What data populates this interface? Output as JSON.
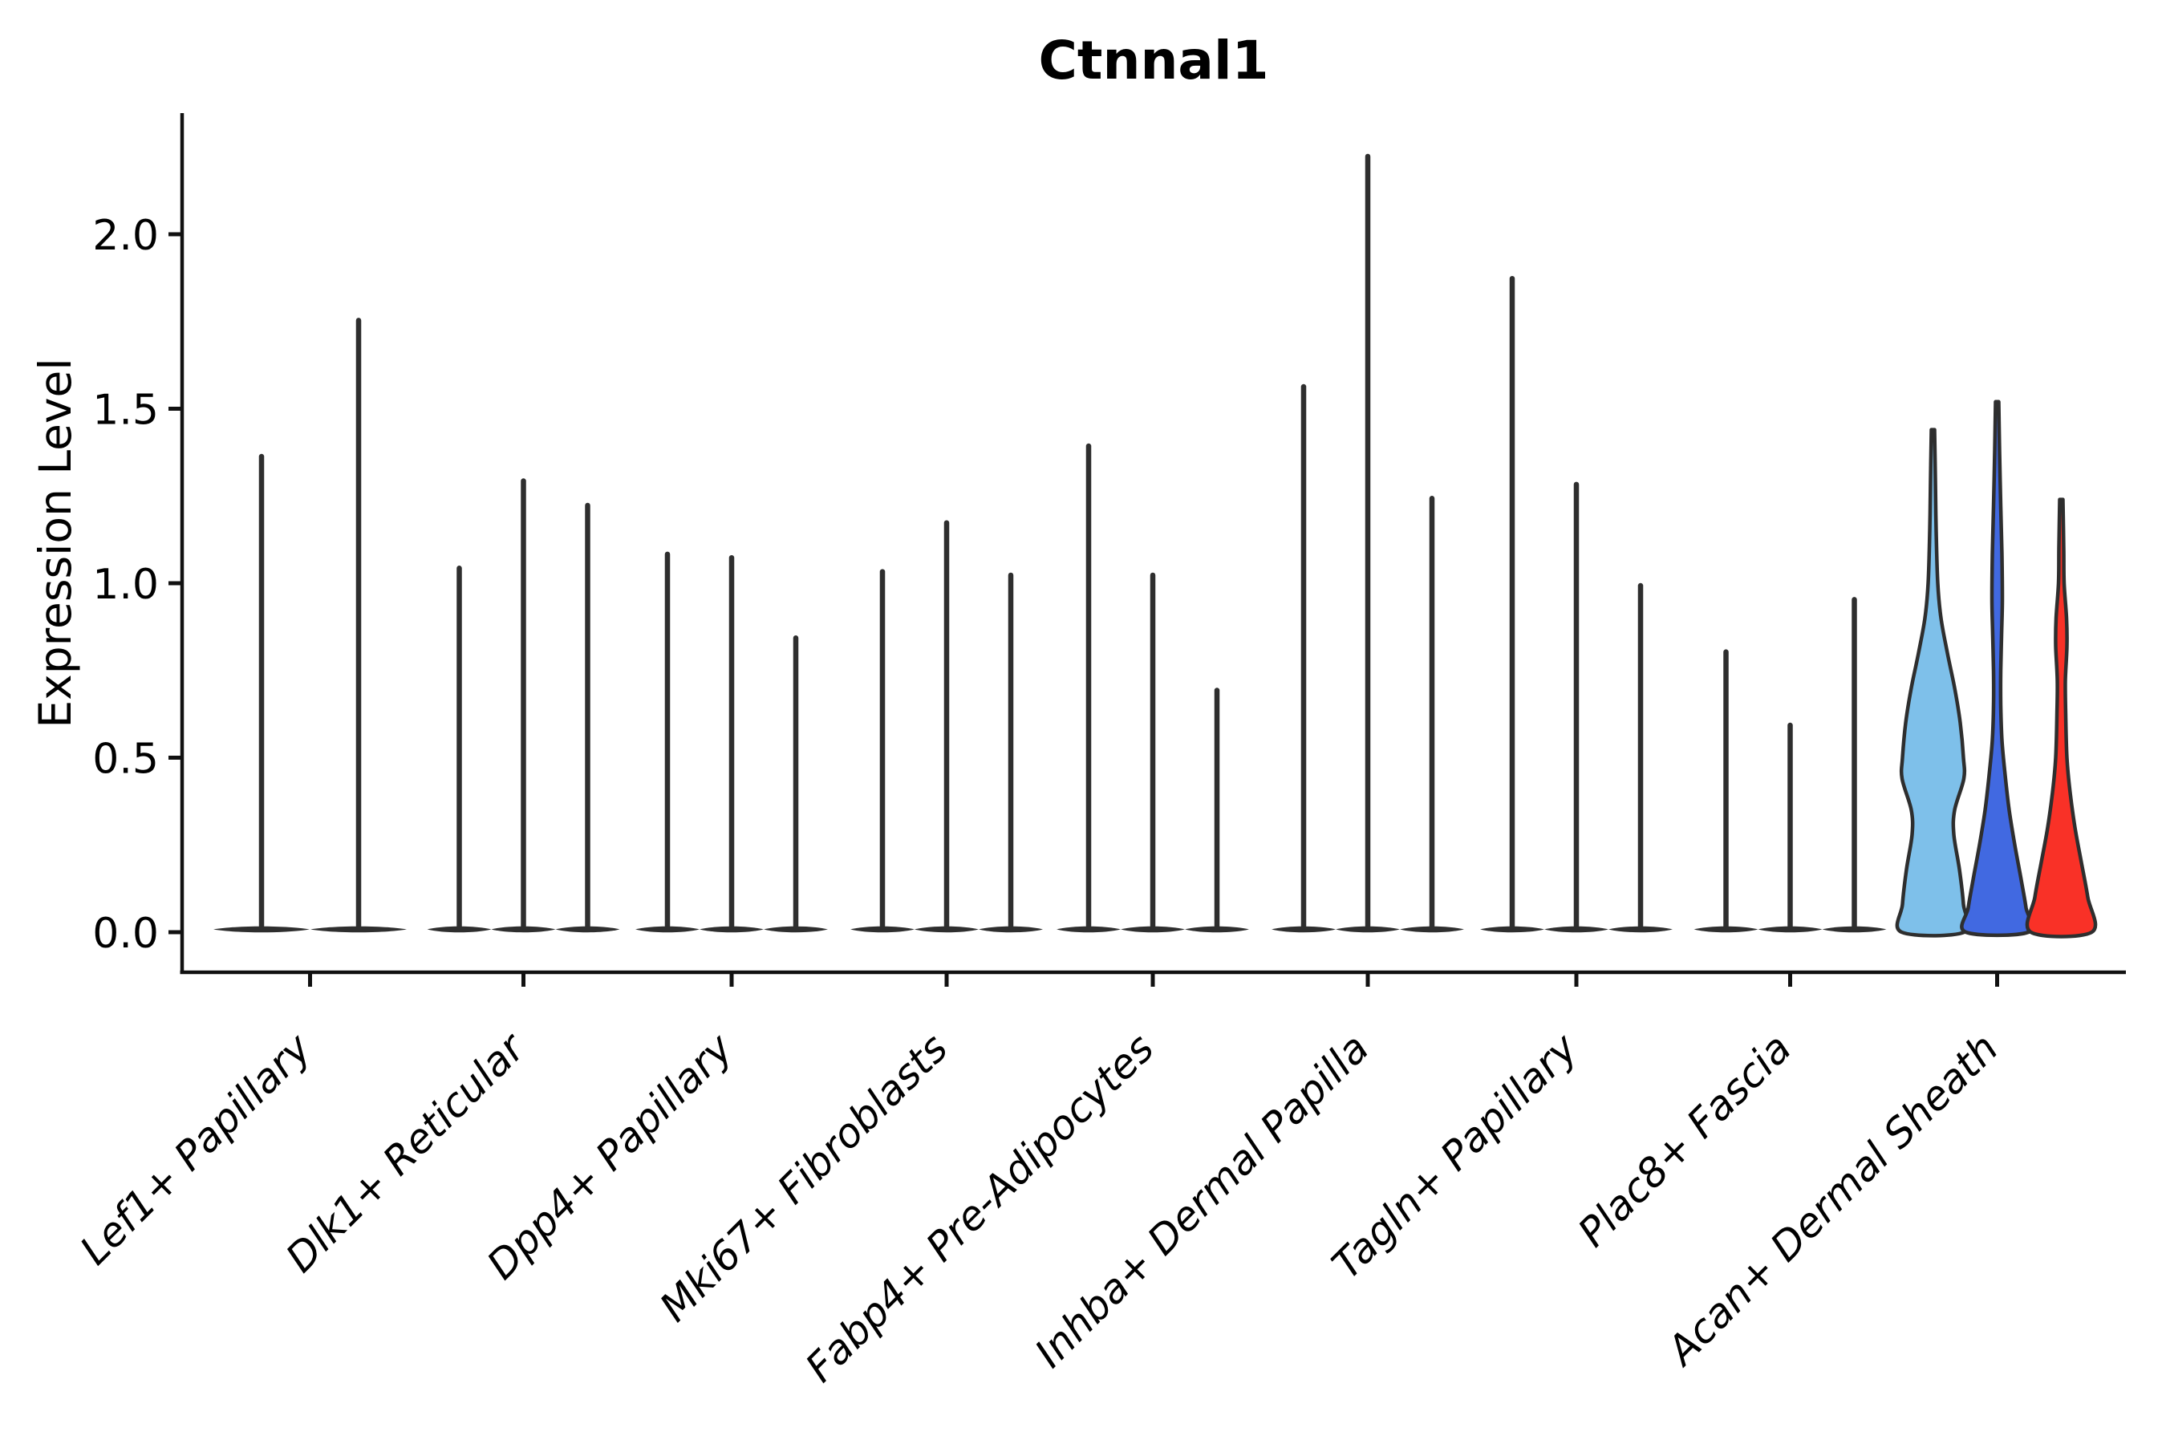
{
  "title": "Ctnnal1",
  "y_axis": {
    "label": "Expression Level",
    "tick_labels": [
      "0.0",
      "0.5",
      "1.0",
      "1.5",
      "2.0"
    ]
  },
  "chart_data": {
    "type": "violin",
    "title": "Ctnnal1",
    "xlabel": "",
    "ylabel": "Expression Level",
    "ylim": [
      -0.12,
      2.35
    ],
    "yticks": [
      0.0,
      0.5,
      1.0,
      1.5,
      2.0
    ],
    "grid": false,
    "legend": "none",
    "categories": [
      "Lef1+ Papillary",
      "Dlk1+ Reticular",
      "Dpp4+ Papillary",
      "Mki67+ Fibroblasts",
      "Fabp4+ Pre-Adipocytes",
      "Inhba+ Dermal Papilla",
      "Tagln+ Papillary",
      "Plac8+ Fascia",
      "Acan+ Dermal Sheath"
    ],
    "outline_color": "#2e2e2e",
    "highlight_fill_colors": [
      "#7EC0EA",
      "#4169E1",
      "#F93127"
    ],
    "groups": [
      {
        "label": "Lef1+ Papillary",
        "violins": [
          {
            "shape": "spike",
            "max": 1.37
          },
          {
            "shape": "spike",
            "max": 1.76
          }
        ]
      },
      {
        "label": "Dlk1+ Reticular",
        "violins": [
          {
            "shape": "spike",
            "max": 1.05
          },
          {
            "shape": "spike",
            "max": 1.3
          },
          {
            "shape": "spike",
            "max": 1.23
          }
        ]
      },
      {
        "label": "Dpp4+ Papillary",
        "violins": [
          {
            "shape": "spike",
            "max": 1.09
          },
          {
            "shape": "spike",
            "max": 1.08
          },
          {
            "shape": "spike",
            "max": 0.85
          }
        ]
      },
      {
        "label": "Mki67+ Fibroblasts",
        "violins": [
          {
            "shape": "spike",
            "max": 1.04
          },
          {
            "shape": "spike",
            "max": 1.18
          },
          {
            "shape": "spike",
            "max": 1.03
          }
        ]
      },
      {
        "label": "Fabp4+ Pre-Adipocytes",
        "violins": [
          {
            "shape": "spike",
            "max": 1.4
          },
          {
            "shape": "spike",
            "max": 1.03
          },
          {
            "shape": "spike",
            "max": 0.7
          }
        ]
      },
      {
        "label": "Inhba+ Dermal Papilla",
        "violins": [
          {
            "shape": "spike",
            "max": 1.57
          },
          {
            "shape": "spike",
            "max": 2.23
          },
          {
            "shape": "spike",
            "max": 1.25
          }
        ]
      },
      {
        "label": "Tagln+ Papillary",
        "violins": [
          {
            "shape": "spike",
            "max": 1.88
          },
          {
            "shape": "spike",
            "max": 1.29
          },
          {
            "shape": "spike",
            "max": 1.0
          }
        ]
      },
      {
        "label": "Plac8+ Fascia",
        "violins": [
          {
            "shape": "spike",
            "max": 0.81
          },
          {
            "shape": "spike",
            "max": 0.6
          },
          {
            "shape": "spike",
            "max": 0.96
          }
        ]
      },
      {
        "label": "Acan+ Dermal Sheath",
        "violins": [
          {
            "shape": "kde",
            "max": 1.44,
            "fill": "#7EC0EA",
            "profile": [
              [
                1.44,
                2
              ],
              [
                1.3,
                3
              ],
              [
                1.15,
                4
              ],
              [
                1.0,
                6
              ],
              [
                0.9,
                10
              ],
              [
                0.8,
                18
              ],
              [
                0.7,
                27
              ],
              [
                0.6,
                34
              ],
              [
                0.5,
                38
              ],
              [
                0.44,
                38.5
              ],
              [
                0.35,
                27
              ],
              [
                0.28,
                26
              ],
              [
                0.18,
                33
              ],
              [
                0.08,
                38
              ],
              [
                0.0,
                39
              ]
            ]
          },
          {
            "shape": "kde",
            "max": 1.52,
            "fill": "#4169E1",
            "profile": [
              [
                1.52,
                2
              ],
              [
                1.38,
                3
              ],
              [
                1.22,
                4.5
              ],
              [
                1.08,
                6
              ],
              [
                0.95,
                6.5
              ],
              [
                0.85,
                5.5
              ],
              [
                0.75,
                4.5
              ],
              [
                0.65,
                4.5
              ],
              [
                0.55,
                6
              ],
              [
                0.45,
                10
              ],
              [
                0.35,
                15
              ],
              [
                0.25,
                22
              ],
              [
                0.15,
                30
              ],
              [
                0.07,
                36
              ],
              [
                0.0,
                39
              ]
            ]
          },
          {
            "shape": "kde",
            "max": 1.24,
            "fill": "#F93127",
            "profile": [
              [
                1.24,
                2
              ],
              [
                1.1,
                3
              ],
              [
                1.0,
                3.5
              ],
              [
                0.9,
                6.5
              ],
              [
                0.82,
                7
              ],
              [
                0.72,
                5
              ],
              [
                0.62,
                5.5
              ],
              [
                0.5,
                7
              ],
              [
                0.4,
                11
              ],
              [
                0.3,
                17
              ],
              [
                0.2,
                25
              ],
              [
                0.1,
                33
              ],
              [
                0.0,
                38
              ]
            ]
          }
        ]
      }
    ]
  }
}
